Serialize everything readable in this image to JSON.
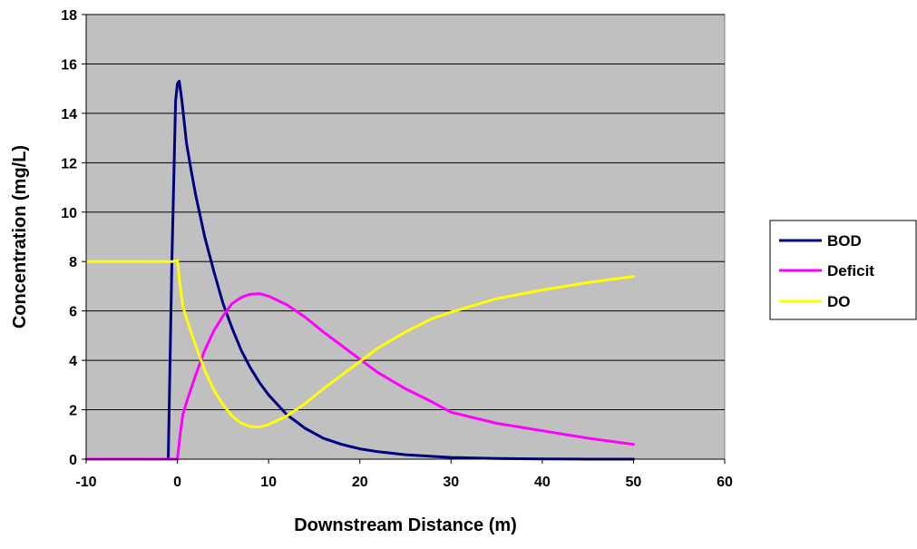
{
  "chart_data": {
    "type": "line",
    "title": "",
    "xlabel": "Downstream Distance (m)",
    "ylabel": "Concentration (mg/L)",
    "xlim": [
      -10,
      60
    ],
    "ylim": [
      0,
      18
    ],
    "xticks": [
      -10,
      0,
      10,
      20,
      30,
      40,
      50,
      60
    ],
    "yticks": [
      0,
      2,
      4,
      6,
      8,
      10,
      12,
      14,
      16,
      18
    ],
    "grid": "horizontal",
    "plot_background": "#c0c0c0",
    "legend_placement": "right",
    "series": [
      {
        "name": "BOD",
        "color": "#000080",
        "x": [
          -1,
          -0.6,
          -0.2,
          0,
          0.2,
          0.5,
          1,
          1.5,
          2,
          3,
          4,
          5,
          6,
          7,
          8,
          9,
          10,
          12,
          14,
          16,
          18,
          20,
          22,
          25,
          30,
          35,
          40,
          45,
          50
        ],
        "y": [
          0,
          8,
          14.5,
          15.2,
          15.3,
          14.5,
          12.8,
          11.7,
          10.7,
          9.0,
          7.6,
          6.3,
          5.3,
          4.4,
          3.7,
          3.1,
          2.6,
          1.8,
          1.25,
          0.85,
          0.6,
          0.42,
          0.3,
          0.18,
          0.07,
          0.03,
          0.01,
          0.0,
          0.0
        ]
      },
      {
        "name": "Deficit",
        "color": "#ff00ff",
        "x": [
          -10,
          0,
          0.3,
          0.6,
          1,
          2,
          3,
          4,
          5,
          6,
          7,
          8,
          9,
          10,
          12,
          14,
          16,
          18,
          20,
          22,
          25,
          28,
          30,
          35,
          40,
          45,
          50
        ],
        "y": [
          0,
          0,
          1.0,
          1.8,
          2.3,
          3.4,
          4.4,
          5.2,
          5.8,
          6.3,
          6.55,
          6.68,
          6.7,
          6.6,
          6.25,
          5.75,
          5.15,
          4.6,
          4.05,
          3.5,
          2.85,
          2.3,
          1.9,
          1.45,
          1.15,
          0.85,
          0.6
        ]
      },
      {
        "name": "DO",
        "color": "#ffff00",
        "x": [
          -10,
          -0.5,
          0,
          0.3,
          0.6,
          1,
          2,
          3,
          4,
          5,
          6,
          7,
          8,
          9,
          10,
          12,
          14,
          16,
          18,
          20,
          22,
          25,
          28,
          30,
          35,
          40,
          45,
          50
        ],
        "y": [
          8,
          8,
          8.05,
          7.0,
          6.2,
          5.7,
          4.6,
          3.6,
          2.8,
          2.2,
          1.75,
          1.45,
          1.32,
          1.3,
          1.4,
          1.75,
          2.25,
          2.85,
          3.4,
          3.95,
          4.5,
          5.15,
          5.7,
          5.95,
          6.5,
          6.85,
          7.15,
          7.4
        ]
      }
    ]
  }
}
